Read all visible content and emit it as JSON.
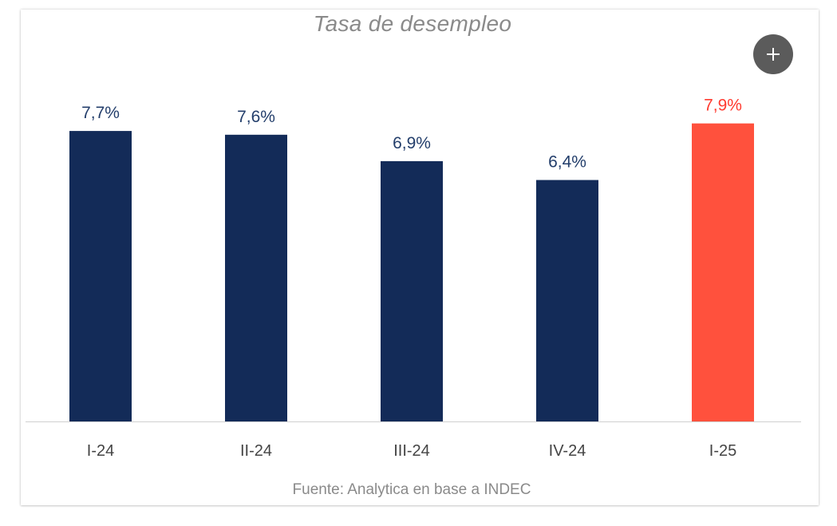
{
  "chart_data": {
    "type": "bar",
    "title": "Tasa de desempleo",
    "categories": [
      "I-24",
      "II-24",
      "III-24",
      "IV-24",
      "I-25"
    ],
    "values": [
      7.7,
      7.6,
      6.9,
      6.4,
      7.9
    ],
    "data_labels": [
      "7,7%",
      "7,6%",
      "6,9%",
      "6,4%",
      "7,9%"
    ],
    "bar_colors": [
      "#132b58",
      "#132b58",
      "#132b58",
      "#132b58",
      "#ff513d"
    ],
    "label_colors": [
      "#233e6b",
      "#233e6b",
      "#233e6b",
      "#233e6b",
      "#ff3b30"
    ],
    "ylim": [
      0,
      8.4
    ],
    "grid": false,
    "source": "Fuente: Analytica en base a INDEC"
  },
  "controls": {
    "expand_icon": "plus-icon"
  }
}
